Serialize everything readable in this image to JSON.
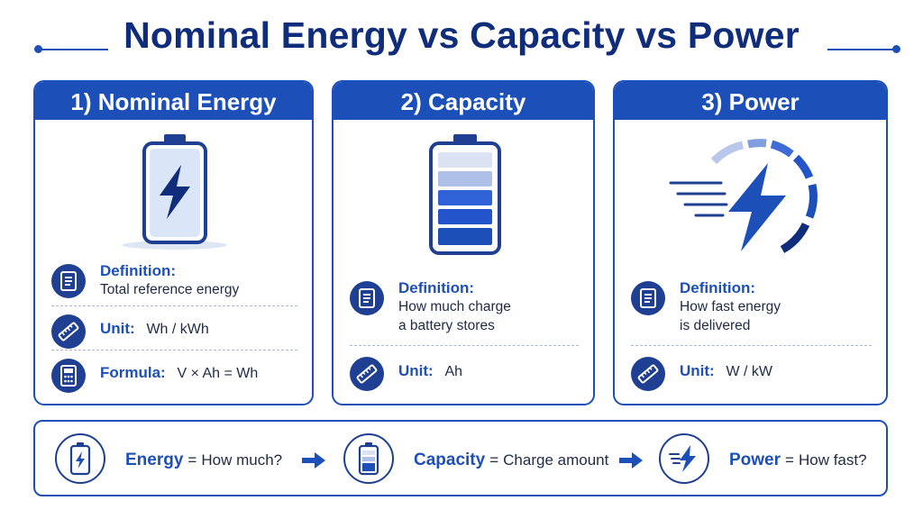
{
  "title": "Nominal Energy vs Capacity vs Power",
  "colors": {
    "primary": "#1d4fb8",
    "dark": "#0f2d7a",
    "light": "#b9c8ea"
  },
  "cards": [
    {
      "header": "1) Nominal Energy",
      "icon": "battery-bolt-icon",
      "definition_label": "Definition:",
      "definition_text": [
        "Total reference energy"
      ],
      "unit_label": "Unit:",
      "unit_value": "Wh / kWh",
      "formula_label": "Formula:",
      "formula_value": "V × Ah = Wh"
    },
    {
      "header": "2) Capacity",
      "icon": "battery-level-icon",
      "definition_label": "Definition:",
      "definition_text": [
        "How much charge",
        "a battery stores"
      ],
      "unit_label": "Unit:",
      "unit_value": "Ah"
    },
    {
      "header": "3) Power",
      "icon": "speed-bolt-icon",
      "definition_label": "Definition:",
      "definition_text": [
        "How fast energy",
        "is delivered"
      ],
      "unit_label": "Unit:",
      "unit_value": "W / kW"
    }
  ],
  "summary": [
    {
      "key": "Energy",
      "eq": "=",
      "desc": "How much?",
      "icon": "battery-bolt-icon"
    },
    {
      "key": "Capacity",
      "eq": "=",
      "desc": "Charge amount",
      "icon": "battery-level-icon"
    },
    {
      "key": "Power",
      "eq": "=",
      "desc": "How fast?",
      "icon": "speed-bolt-icon"
    }
  ]
}
